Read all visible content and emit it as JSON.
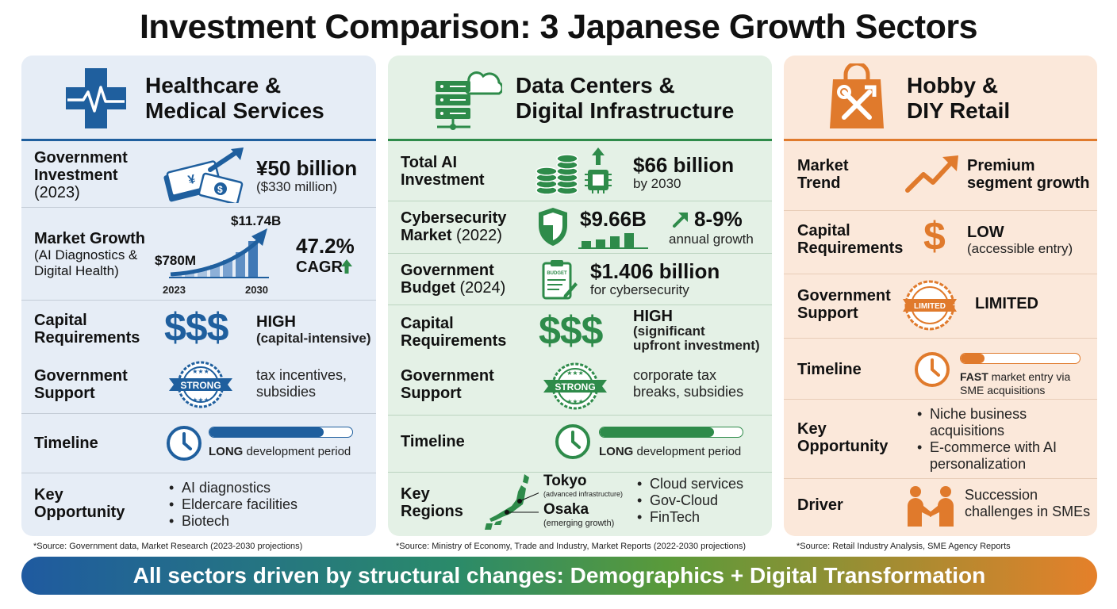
{
  "title": "Investment Comparison: 3 Japanese Growth Sectors",
  "colors": {
    "health": "#1f5f9e",
    "data": "#2e8b4a",
    "hobby": "#e07a2c"
  },
  "healthcare": {
    "title_line1": "Healthcare &",
    "title_line2": "Medical Services",
    "icon": "medical-cross-icon",
    "gov_investment": {
      "label_line1": "Government",
      "label_line2": "Investment",
      "label_year": "(2023)",
      "value": "¥50 billion",
      "sub": "($330 million)"
    },
    "market_growth": {
      "label": "Market Growth",
      "sub_line1": "(AI Diagnostics &",
      "sub_line2": "Digital Health)",
      "start_value": "$780M",
      "end_value": "$11.74B",
      "start_year": "2023",
      "end_year": "2030",
      "cagr_value": "47.2%",
      "cagr_label": "CAGR"
    },
    "capital": {
      "label_line1": "Capital",
      "label_line2": "Requirements",
      "symbol": "$$$",
      "value": "HIGH",
      "sub": "(capital-intensive)"
    },
    "gov_support": {
      "label_line1": "Government",
      "label_line2": "Support",
      "badge": "STRONG",
      "text_line1": "tax incentives,",
      "text_line2": "subsidies"
    },
    "timeline": {
      "label": "Timeline",
      "text_bold": "LONG",
      "text_rest": " development period",
      "progress": 0.8
    },
    "key_opportunity": {
      "label_line1": "Key",
      "label_line2": "Opportunity",
      "items": [
        "AI diagnostics",
        "Eldercare facilities",
        "Biotech"
      ]
    },
    "source": "*Source: Government data, Market Research (2023-2030 projections)"
  },
  "datacenters": {
    "title_line1": "Data Centers &",
    "title_line2": "Digital Infrastructure",
    "icon": "server-cloud-icon",
    "ai_investment": {
      "label_line1": "Total AI",
      "label_line2": "Investment",
      "value": "$66 billion",
      "sub": "by 2030"
    },
    "cybersecurity": {
      "label_line1": "Cybersecurity",
      "label_line2": "Market",
      "label_year": "(2022)",
      "value": "$9.66B",
      "growth": "8-9%",
      "growth_sub": "annual growth"
    },
    "gov_budget": {
      "label_line1": "Government",
      "label_line2": "Budget",
      "label_year": "(2024)",
      "icon_text": "BUDGET",
      "value": "$1.406 billion",
      "sub": "for cybersecurity"
    },
    "capital": {
      "label_line1": "Capital",
      "label_line2": "Requirements",
      "symbol": "$$$",
      "value": "HIGH",
      "sub_line1": "(significant",
      "sub_line2": "upfront investment)"
    },
    "gov_support": {
      "label_line1": "Government",
      "label_line2": "Support",
      "badge": "STRONG",
      "text_line1": "corporate tax",
      "text_line2": "breaks, subsidies"
    },
    "timeline": {
      "label": "Timeline",
      "text_bold": "LONG",
      "text_rest": " development period",
      "progress": 0.8
    },
    "key_regions": {
      "label_line1": "Key",
      "label_line2": "Regions",
      "city1": "Tokyo",
      "city1_sub": "(advanced infrastructure)",
      "city2": "Osaka",
      "city2_sub": "(emerging growth)",
      "items": [
        "Cloud services",
        "Gov-Cloud",
        "FinTech"
      ]
    },
    "source": "*Source: Ministry of Economy, Trade and Industry, Market Reports (2022-2030 projections)"
  },
  "hobby": {
    "title_line1": "Hobby &",
    "title_line2": "DIY Retail",
    "icon": "shopping-bag-tools-icon",
    "market_trend": {
      "label_line1": "Market",
      "label_line2": "Trend",
      "value_line1": "Premium",
      "value_line2": "segment growth"
    },
    "capital": {
      "label_line1": "Capital",
      "label_line2": "Requirements",
      "symbol": "$",
      "value": "LOW",
      "sub": "(accessible entry)"
    },
    "gov_support": {
      "label_line1": "Government",
      "label_line2": "Support",
      "badge": "LIMITED",
      "value": "LIMITED"
    },
    "timeline": {
      "label": "Timeline",
      "text_bold": "FAST",
      "text_rest": " market entry via",
      "text_line2": "SME acquisitions",
      "progress": 0.2
    },
    "key_opportunity": {
      "label_line1": "Key",
      "label_line2": "Opportunity",
      "items": [
        "Niche business acquisitions",
        "E-commerce with AI personalization"
      ]
    },
    "driver": {
      "label": "Driver",
      "text_line1": "Succession",
      "text_line2": "challenges in SMEs"
    },
    "source": "*Source: Retail Industry Analysis, SME Agency Reports"
  },
  "banner": "All sectors driven by structural changes: Demographics + Digital Transformation"
}
